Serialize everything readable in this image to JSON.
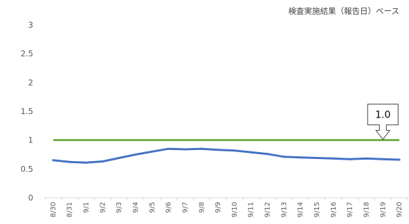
{
  "note": "検査実施結果（報告日）ベース",
  "colors": {
    "series": "#4472C4",
    "reference": "#70AD47",
    "axis": "#D9D9D9",
    "text": "#595959"
  },
  "chart_data": {
    "type": "line",
    "title": "",
    "xlabel": "",
    "ylabel": "",
    "ylim": [
      0,
      3
    ],
    "yticks": [
      "0",
      "0.5",
      "1",
      "1.5",
      "2",
      "2.5",
      "3"
    ],
    "grid": false,
    "categories": [
      "8/30",
      "8/31",
      "9/1",
      "9/2",
      "9/3",
      "9/4",
      "9/5",
      "9/6",
      "9/7",
      "9/8",
      "9/9",
      "9/10",
      "9/11",
      "9/12",
      "9/13",
      "9/14",
      "9/15",
      "9/16",
      "9/17",
      "9/18",
      "9/19",
      "9/20"
    ],
    "series": [
      {
        "values": [
          0.65,
          0.62,
          0.61,
          0.63,
          0.69,
          0.75,
          0.8,
          0.85,
          0.84,
          0.85,
          0.83,
          0.82,
          0.79,
          0.76,
          0.71,
          0.7,
          0.69,
          0.68,
          0.67,
          0.68,
          0.67,
          0.66
        ]
      }
    ],
    "reference_line": {
      "value": 1.0
    },
    "annotations": [
      {
        "text": "1.0",
        "x": "9/19",
        "y": 1.0
      }
    ]
  }
}
